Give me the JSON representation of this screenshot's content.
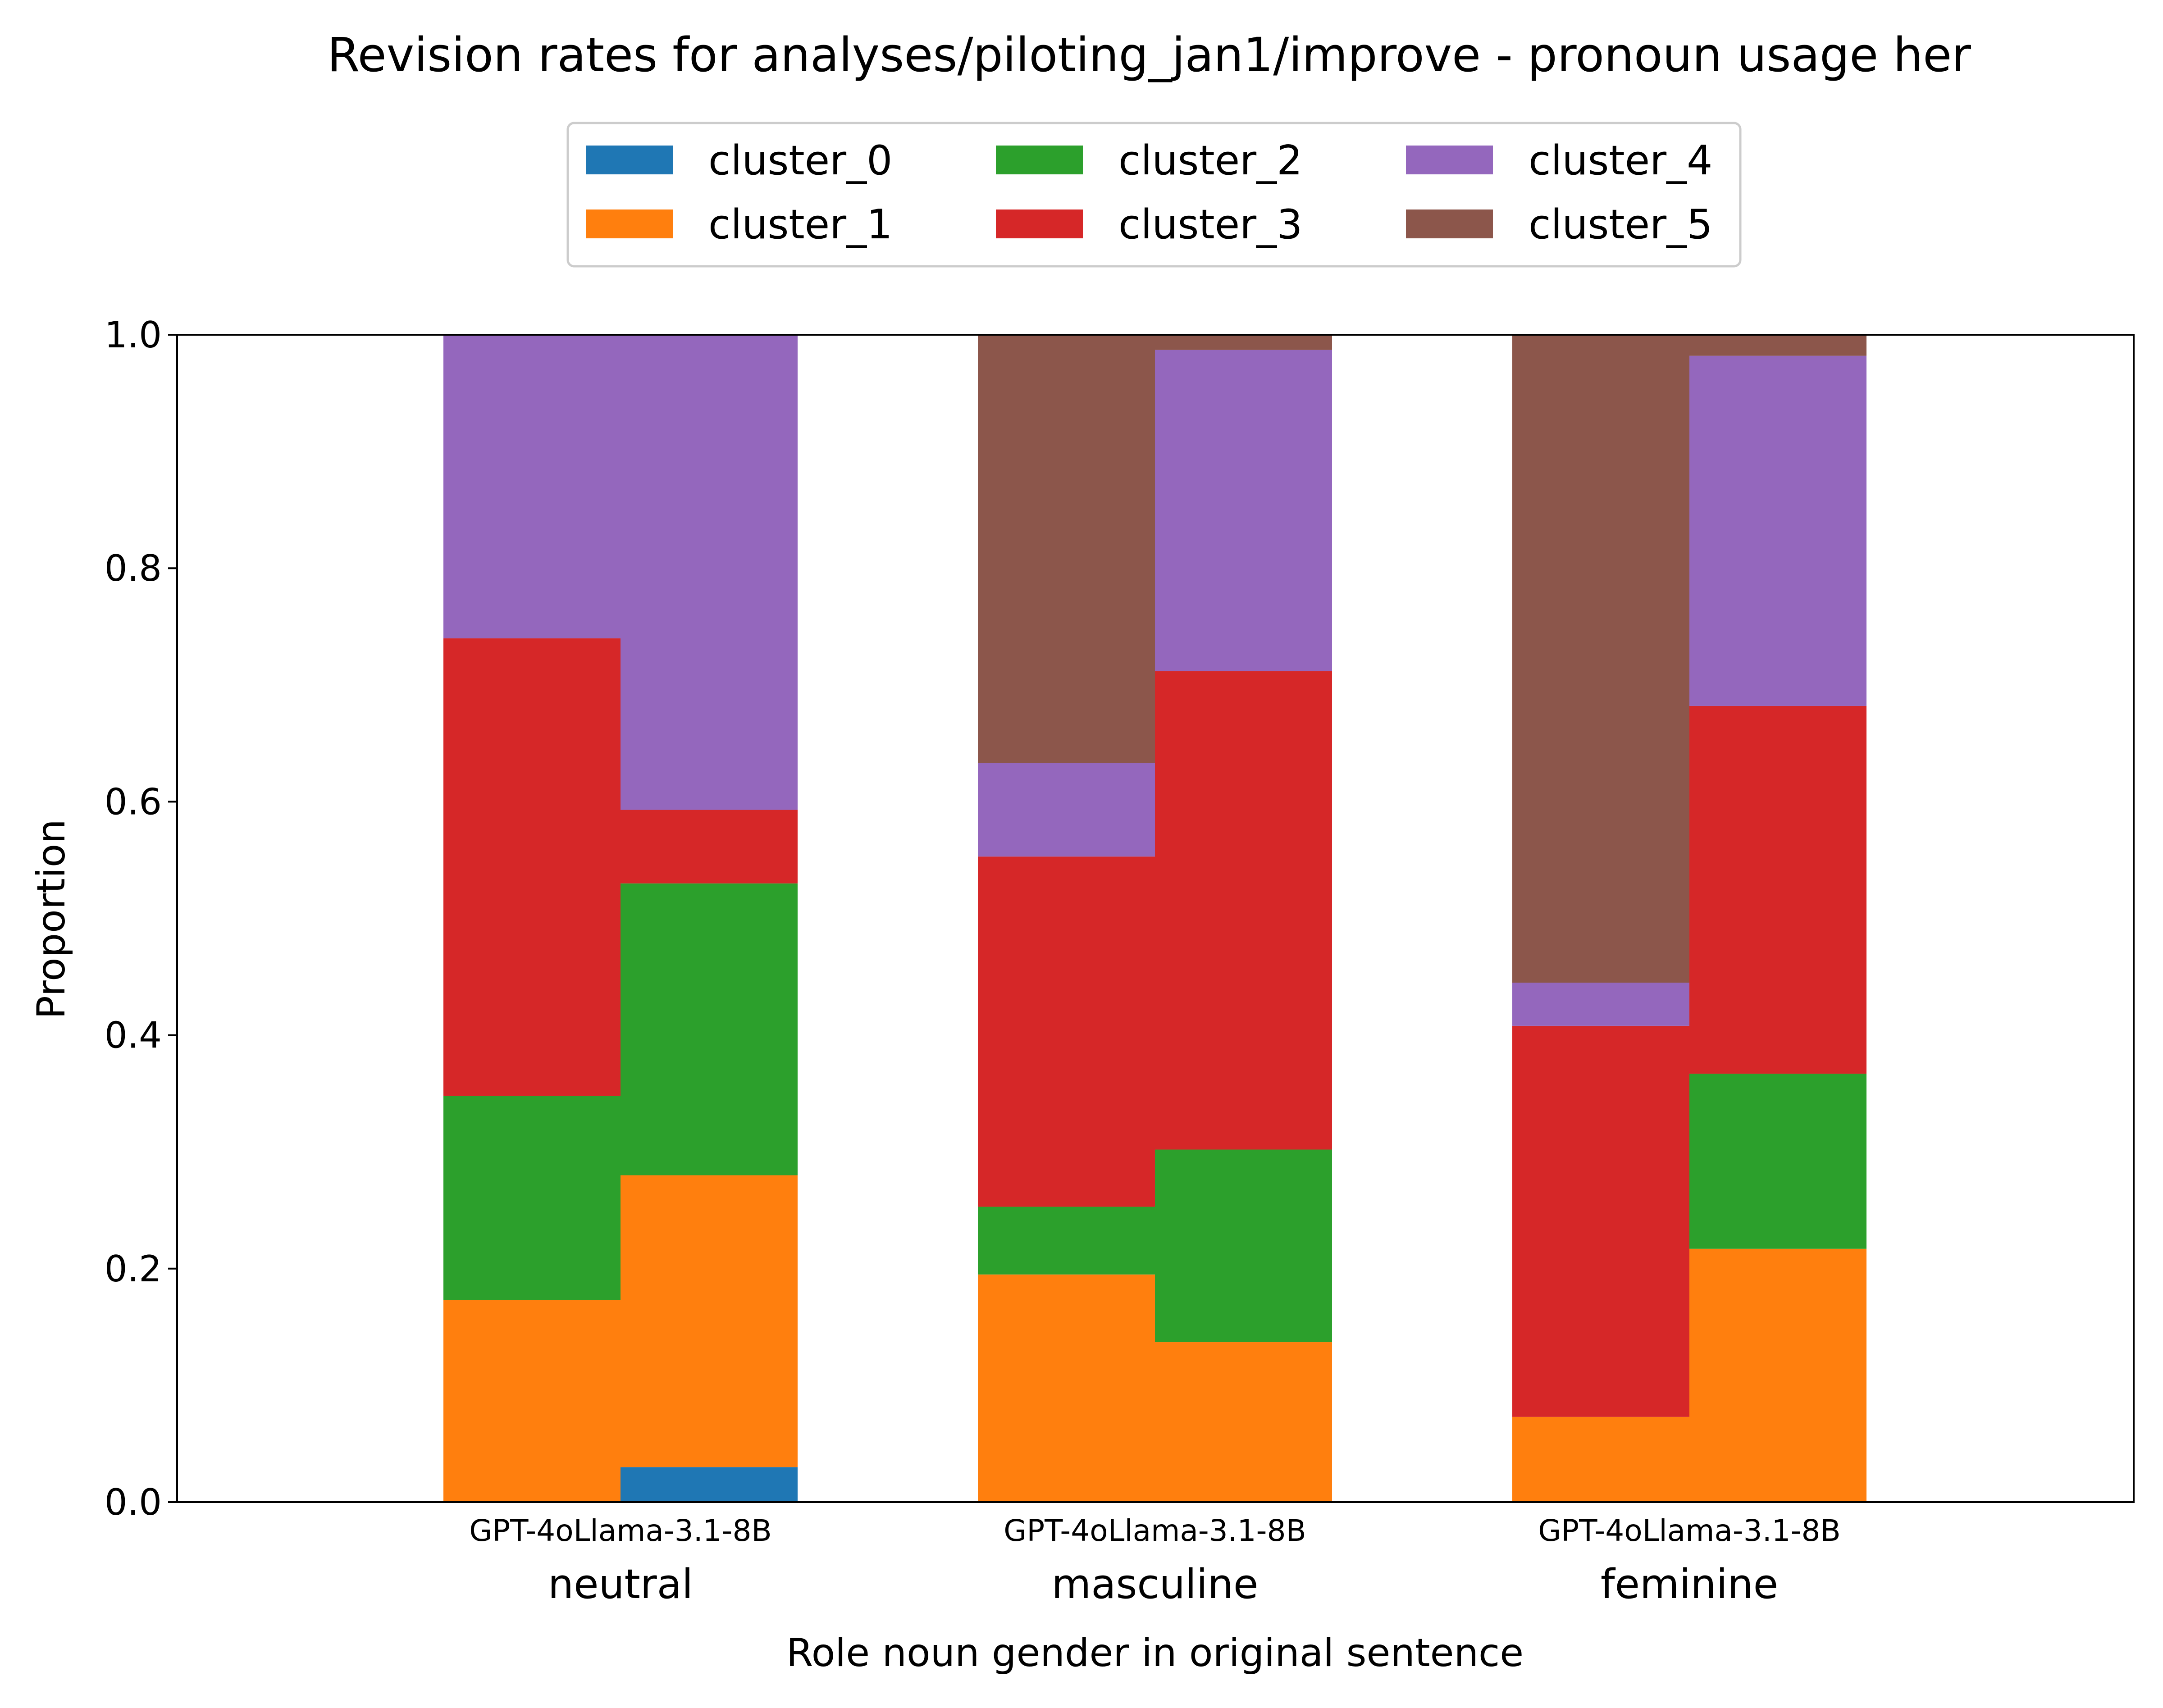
{
  "chart_data": {
    "type": "bar",
    "stacked": true,
    "title": "Revision rates for analyses/piloting_jan1/improve - pronoun usage her",
    "xlabel": "Role noun gender in original sentence",
    "ylabel": "Proportion",
    "ylim": [
      0,
      1
    ],
    "yticks": [
      "0.0",
      "0.2",
      "0.4",
      "0.6",
      "0.8",
      "1.0"
    ],
    "grid": false,
    "legend_position": "top-center",
    "groups": [
      "neutral",
      "masculine",
      "feminine"
    ],
    "models": [
      "GPT-4o",
      "Llama-3.1-8B"
    ],
    "series": [
      {
        "name": "cluster_0",
        "color": "#1f77b4",
        "values": [
          [
            0.0,
            0.03
          ],
          [
            0.0,
            0.0
          ],
          [
            0.0,
            0.0
          ]
        ]
      },
      {
        "name": "cluster_1",
        "color": "#ff7f0e",
        "values": [
          [
            0.173,
            0.25
          ],
          [
            0.195,
            0.137
          ],
          [
            0.073,
            0.217
          ]
        ]
      },
      {
        "name": "cluster_2",
        "color": "#2ca02c",
        "values": [
          [
            0.175,
            0.25
          ],
          [
            0.058,
            0.165
          ],
          [
            0.0,
            0.15
          ]
        ]
      },
      {
        "name": "cluster_3",
        "color": "#d62728",
        "values": [
          [
            0.392,
            0.063
          ],
          [
            0.3,
            0.41
          ],
          [
            0.335,
            0.315
          ]
        ]
      },
      {
        "name": "cluster_4",
        "color": "#9467bd",
        "values": [
          [
            0.26,
            0.407
          ],
          [
            0.08,
            0.275
          ],
          [
            0.037,
            0.3
          ]
        ]
      },
      {
        "name": "cluster_5",
        "color": "#8c564b",
        "values": [
          [
            0.0,
            0.0
          ],
          [
            0.367,
            0.013
          ],
          [
            0.555,
            0.018
          ]
        ]
      }
    ]
  }
}
